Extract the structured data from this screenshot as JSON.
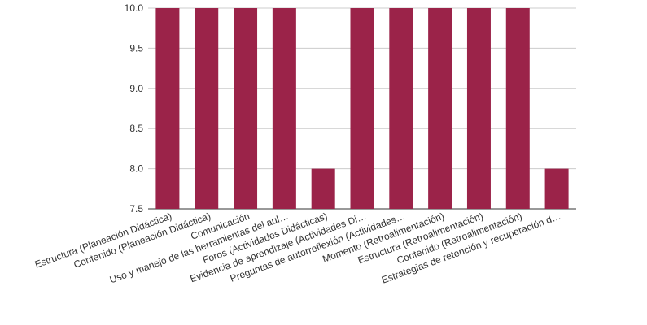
{
  "chart_data": {
    "type": "bar",
    "categories": [
      "Estructura (Planeación Didáctica)",
      "Contenido (Planeación Didáctica)",
      "Comunicación",
      "Uso y manejo de las herramientas del aul…",
      "Foros (Actividades Didácticas)",
      "Evidencia de aprendizaje (Actividades Di…",
      "Preguntas de autorreflexión (Actividades…",
      "Momento (Retroalimentación)",
      "Estructura (Retroalimentación)",
      "Contenido (Retroalimentación)",
      "Estrategias de retención y recuperación d…"
    ],
    "values": [
      10,
      10,
      10,
      10,
      8,
      10,
      10,
      10,
      10,
      10,
      8
    ],
    "yticks": [
      "7.5",
      "8.0",
      "8.5",
      "9.0",
      "9.5",
      "10.0"
    ],
    "ylim": [
      7.5,
      10
    ],
    "grid": true,
    "colors": {
      "bar": "#9b2349",
      "grid": "#cccccc",
      "text": "#333333"
    }
  }
}
